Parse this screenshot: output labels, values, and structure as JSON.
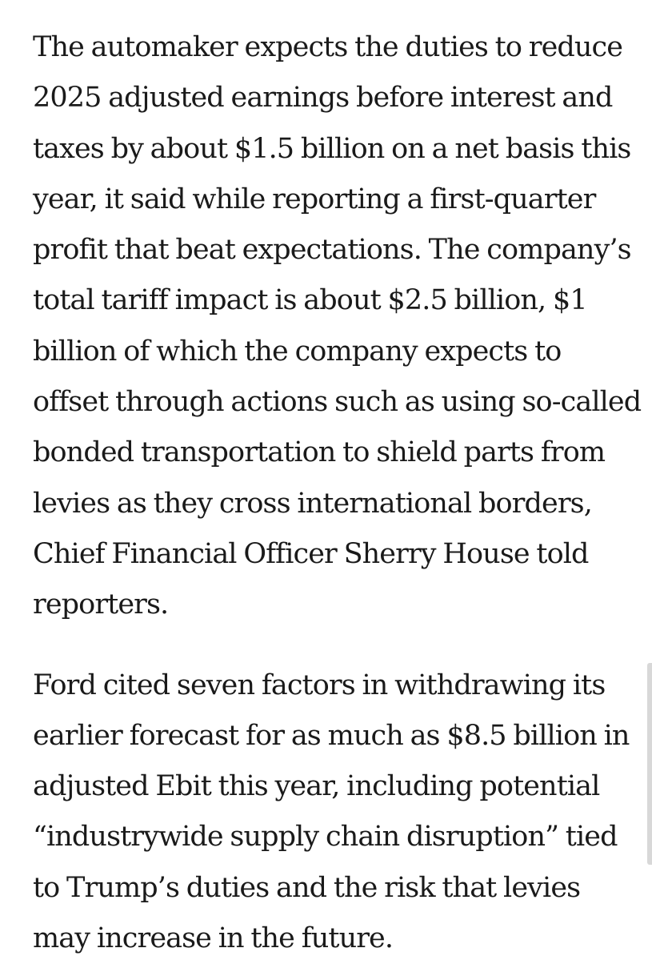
{
  "article": {
    "paragraphs": [
      {
        "lines": [
          "The automaker expects the duties to reduce",
          "2025 adjusted earnings before interest and",
          "taxes by about $1.5 billion on a net basis this",
          "year, it said while reporting a first-quarter",
          "profit that beat expectations. The company’s",
          "total tariff impact is about $2.5 billion, $1",
          "billion of which the company expects to",
          "offset through actions such as using so-called",
          "bonded transportation to shield parts from",
          "levies as they cross international borders,",
          "Chief Financial Officer Sherry House told",
          "reporters."
        ]
      },
      {
        "lines": [
          "Ford cited seven factors in withdrawing its",
          "earlier forecast for as much as $8.5 billion in",
          "adjusted Ebit this year, including potential",
          "“industrywide supply chain disruption” tied",
          "to Trump’s duties and the risk that levies",
          "may increase in the future."
        ]
      }
    ]
  },
  "colors": {
    "text": "#1a1a1a",
    "background": "#ffffff",
    "scrollbar": "#d8d8d8"
  }
}
